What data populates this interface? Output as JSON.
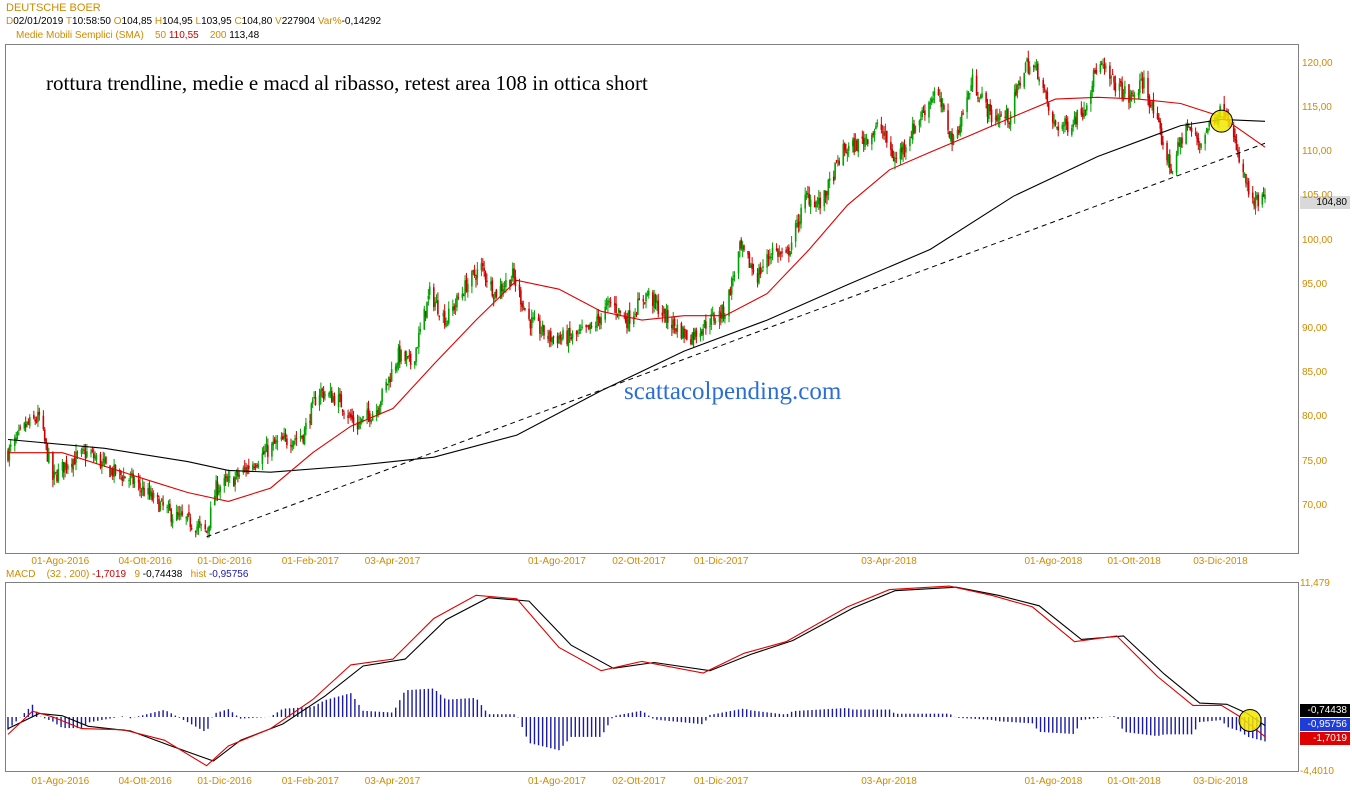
{
  "header": {
    "instrument": "DEUTSCHE BOER",
    "d_label": "D",
    "date": "02/01/2019",
    "t_label": "T",
    "time": "10:58:50",
    "o_label": "O",
    "open": "104,85",
    "h_label": "H",
    "high": "104,95",
    "l_label": "L",
    "low": "103,95",
    "c_label": "C",
    "close": "104,80",
    "v_label": "V",
    "volume": "227904",
    "var_label": "Var%",
    "var": "-0,14292"
  },
  "sma_legend": {
    "label": "Medie Mobili Semplici (SMA)",
    "p1": "50",
    "v1": "110,55",
    "p2": "200",
    "v2": "113,48"
  },
  "macd_legend": {
    "label": "MACD",
    "params": "(32 , 200)",
    "macd_value": "-1,7019",
    "signal_period": "9",
    "signal_value": "-0,74438",
    "hist_label": "hist",
    "hist_value": "-0,95756"
  },
  "annotation": "rottura trendline, medie e macd al ribasso, retest area 108 in ottica short",
  "watermark": "scattacolpending.com",
  "last_price_tag": "104,80",
  "macd_tags": {
    "signal": "-0,74438",
    "hist": "-0,95756",
    "macd": "-1,7019"
  },
  "macd_axis": {
    "top": "11,479",
    "bottom": "-4,4010"
  },
  "colors": {
    "up": "#00a000",
    "down": "#cc0000",
    "sma50": "#e00000",
    "sma200": "#000000",
    "hist": "#1a1aa8",
    "highlight": "#f2e600",
    "axis_text": "#d08a00"
  },
  "chart_data": [
    {
      "type": "candlestick",
      "title": "DEUTSCHE BOER",
      "ylim": [
        65,
        122
      ],
      "y_ticks": [
        "70,00",
        "75,00",
        "80,00",
        "85,00",
        "90,00",
        "95,00",
        "100,00",
        "105,00",
        "110,00",
        "115,00",
        "120,00"
      ],
      "x_ticks": [
        "01-Ago-2016",
        "04-Ott-2016",
        "01-Dic-2016",
        "01-Feb-2017",
        "03-Apr-2017",
        "01-Ago-2017",
        "02-Ott-2017",
        "01-Dic-2017",
        "03-Apr-2018",
        "01-Ago-2018",
        "01-Ott-2018",
        "03-Dic-2018"
      ],
      "x_start": "2016-06-22",
      "x_end": "2019-01-02",
      "price_path": [
        [
          "2016-06-22",
          76
        ],
        [
          "2016-07-05",
          79
        ],
        [
          "2016-07-15",
          80
        ],
        [
          "2016-07-25",
          73
        ],
        [
          "2016-08-05",
          75
        ],
        [
          "2016-08-20",
          76
        ],
        [
          "2016-09-05",
          74
        ],
        [
          "2016-09-20",
          73
        ],
        [
          "2016-10-05",
          71
        ],
        [
          "2016-10-20",
          69
        ],
        [
          "2016-11-05",
          68
        ],
        [
          "2016-11-15",
          67
        ],
        [
          "2016-11-22",
          72
        ],
        [
          "2016-12-05",
          73
        ],
        [
          "2016-12-20",
          75
        ],
        [
          "2017-01-05",
          77
        ],
        [
          "2017-01-25",
          78
        ],
        [
          "2017-02-05",
          83
        ],
        [
          "2017-02-20",
          82
        ],
        [
          "2017-03-05",
          79
        ],
        [
          "2017-03-20",
          81
        ],
        [
          "2017-04-05",
          87
        ],
        [
          "2017-04-15",
          86
        ],
        [
          "2017-04-28",
          94
        ],
        [
          "2017-05-10",
          91
        ],
        [
          "2017-05-25",
          95
        ],
        [
          "2017-06-05",
          97
        ],
        [
          "2017-06-15",
          94
        ],
        [
          "2017-06-28",
          96
        ],
        [
          "2017-07-10",
          91
        ],
        [
          "2017-07-25",
          89
        ],
        [
          "2017-08-10",
          89
        ],
        [
          "2017-08-25",
          90
        ],
        [
          "2017-09-08",
          93
        ],
        [
          "2017-09-20",
          91
        ],
        [
          "2017-10-05",
          94
        ],
        [
          "2017-10-20",
          91
        ],
        [
          "2017-11-05",
          89
        ],
        [
          "2017-11-20",
          91
        ],
        [
          "2017-12-01",
          92
        ],
        [
          "2017-12-12",
          99
        ],
        [
          "2017-12-25",
          96
        ],
        [
          "2018-01-05",
          99
        ],
        [
          "2018-01-15",
          98
        ],
        [
          "2018-01-30",
          105
        ],
        [
          "2018-02-10",
          104
        ],
        [
          "2018-02-25",
          110
        ],
        [
          "2018-03-10",
          111
        ],
        [
          "2018-03-25",
          113
        ],
        [
          "2018-04-05",
          109
        ],
        [
          "2018-04-20",
          113
        ],
        [
          "2018-05-05",
          117
        ],
        [
          "2018-05-18",
          111
        ],
        [
          "2018-06-01",
          118
        ],
        [
          "2018-06-15",
          114
        ],
        [
          "2018-06-28",
          114
        ],
        [
          "2018-07-10",
          120
        ],
        [
          "2018-07-20",
          119
        ],
        [
          "2018-07-30",
          113
        ],
        [
          "2018-08-10",
          113
        ],
        [
          "2018-08-22",
          115
        ],
        [
          "2018-09-01",
          120
        ],
        [
          "2018-09-12",
          118
        ],
        [
          "2018-09-25",
          116
        ],
        [
          "2018-10-05",
          118
        ],
        [
          "2018-10-15",
          113
        ],
        [
          "2018-10-25",
          108
        ],
        [
          "2018-11-05",
          113
        ],
        [
          "2018-11-15",
          111
        ],
        [
          "2018-11-25",
          114
        ],
        [
          "2018-12-05",
          115
        ],
        [
          "2018-12-12",
          110
        ],
        [
          "2018-12-18",
          107
        ],
        [
          "2018-12-24",
          104
        ],
        [
          "2019-01-02",
          104.8
        ]
      ],
      "sma50_path": [
        [
          "2016-06-22",
          76
        ],
        [
          "2016-08-01",
          76
        ],
        [
          "2016-10-01",
          73
        ],
        [
          "2016-11-01",
          71.5
        ],
        [
          "2016-12-01",
          70.5
        ],
        [
          "2017-01-01",
          72
        ],
        [
          "2017-02-01",
          76
        ],
        [
          "2017-03-01",
          79
        ],
        [
          "2017-04-01",
          81
        ],
        [
          "2017-05-01",
          86
        ],
        [
          "2017-06-01",
          91
        ],
        [
          "2017-07-01",
          95.5
        ],
        [
          "2017-08-01",
          94.5
        ],
        [
          "2017-09-01",
          92
        ],
        [
          "2017-10-01",
          91
        ],
        [
          "2017-11-01",
          91.5
        ],
        [
          "2017-12-01",
          91.5
        ],
        [
          "2018-01-01",
          94
        ],
        [
          "2018-02-01",
          99
        ],
        [
          "2018-03-01",
          104
        ],
        [
          "2018-04-01",
          108
        ],
        [
          "2018-05-01",
          110
        ],
        [
          "2018-06-01",
          112
        ],
        [
          "2018-07-01",
          114
        ],
        [
          "2018-08-01",
          116
        ],
        [
          "2018-09-01",
          116.2
        ],
        [
          "2018-10-01",
          116
        ],
        [
          "2018-11-01",
          115.5
        ],
        [
          "2018-12-01",
          114
        ],
        [
          "2019-01-02",
          110.55
        ]
      ],
      "sma200_path": [
        [
          "2016-06-22",
          77.5
        ],
        [
          "2016-09-01",
          76.5
        ],
        [
          "2016-11-01",
          75
        ],
        [
          "2016-12-01",
          74
        ],
        [
          "2017-01-01",
          73.8
        ],
        [
          "2017-03-01",
          74.5
        ],
        [
          "2017-05-01",
          75.5
        ],
        [
          "2017-07-01",
          78
        ],
        [
          "2017-09-01",
          83
        ],
        [
          "2017-11-01",
          87.5
        ],
        [
          "2018-01-01",
          91
        ],
        [
          "2018-03-01",
          95
        ],
        [
          "2018-05-01",
          99
        ],
        [
          "2018-07-01",
          105
        ],
        [
          "2018-09-01",
          109.5
        ],
        [
          "2018-11-01",
          113
        ],
        [
          "2018-12-01",
          113.7
        ],
        [
          "2019-01-02",
          113.48
        ]
      ],
      "trendline": [
        [
          "2016-11-15",
          66.5
        ],
        [
          "2019-01-02",
          111
        ]
      ],
      "highlight": {
        "date": "2018-12-01",
        "price": 113.5
      }
    },
    {
      "type": "line",
      "title": "MACD",
      "ylim": [
        -4.401,
        11.479
      ],
      "series": [
        {
          "name": "MACD",
          "points": [
            [
              "2016-06-22",
              -1.5
            ],
            [
              "2016-07-10",
              0.5
            ],
            [
              "2016-07-25",
              0.0
            ],
            [
              "2016-08-15",
              -1.0
            ],
            [
              "2016-09-15",
              -1.1
            ],
            [
              "2016-10-15",
              -2.0
            ],
            [
              "2016-11-15",
              -4.2
            ],
            [
              "2016-12-01",
              -2.5
            ],
            [
              "2017-01-01",
              -1.0
            ],
            [
              "2017-02-01",
              1.5
            ],
            [
              "2017-03-01",
              4.5
            ],
            [
              "2017-04-01",
              5.0
            ],
            [
              "2017-05-01",
              8.5
            ],
            [
              "2017-06-01",
              10.5
            ],
            [
              "2017-07-01",
              10.2
            ],
            [
              "2017-08-01",
              6.0
            ],
            [
              "2017-09-01",
              4.0
            ],
            [
              "2017-10-01",
              4.8
            ],
            [
              "2017-11-15",
              3.8
            ],
            [
              "2017-12-15",
              5.5
            ],
            [
              "2018-01-15",
              6.5
            ],
            [
              "2018-03-01",
              9.5
            ],
            [
              "2018-04-01",
              11.0
            ],
            [
              "2018-05-15",
              11.3
            ],
            [
              "2018-06-15",
              10.5
            ],
            [
              "2018-07-15",
              9.5
            ],
            [
              "2018-08-15",
              6.5
            ],
            [
              "2018-09-15",
              7.0
            ],
            [
              "2018-10-15",
              3.5
            ],
            [
              "2018-11-10",
              1.0
            ],
            [
              "2018-12-01",
              1.0
            ],
            [
              "2018-12-15",
              0.0
            ],
            [
              "2019-01-02",
              -1.7019
            ]
          ]
        },
        {
          "name": "Signal",
          "points": [
            [
              "2016-06-22",
              -1.0
            ],
            [
              "2016-07-15",
              0.3
            ],
            [
              "2016-08-01",
              0.1
            ],
            [
              "2016-08-20",
              -0.8
            ],
            [
              "2016-09-20",
              -1.2
            ],
            [
              "2016-10-20",
              -2.5
            ],
            [
              "2016-11-20",
              -3.8
            ],
            [
              "2016-12-10",
              -2.0
            ],
            [
              "2017-01-10",
              -0.6
            ],
            [
              "2017-02-10",
              1.8
            ],
            [
              "2017-03-10",
              4.4
            ],
            [
              "2017-04-10",
              5.0
            ],
            [
              "2017-05-10",
              8.4
            ],
            [
              "2017-06-10",
              10.3
            ],
            [
              "2017-07-10",
              10.0
            ],
            [
              "2017-08-10",
              6.2
            ],
            [
              "2017-09-10",
              4.2
            ],
            [
              "2017-10-10",
              4.7
            ],
            [
              "2017-11-20",
              4.0
            ],
            [
              "2017-12-20",
              5.4
            ],
            [
              "2018-01-20",
              6.6
            ],
            [
              "2018-03-05",
              9.4
            ],
            [
              "2018-04-05",
              10.9
            ],
            [
              "2018-05-20",
              11.2
            ],
            [
              "2018-06-20",
              10.5
            ],
            [
              "2018-07-20",
              9.6
            ],
            [
              "2018-08-20",
              6.7
            ],
            [
              "2018-09-20",
              7.0
            ],
            [
              "2018-10-20",
              3.7
            ],
            [
              "2018-11-15",
              1.2
            ],
            [
              "2018-12-05",
              1.1
            ],
            [
              "2018-12-20",
              0.3
            ],
            [
              "2019-01-02",
              -0.74438
            ]
          ]
        }
      ],
      "hist_last": -0.95756,
      "highlight": {
        "date": "2018-12-22",
        "value": -0.3
      }
    }
  ]
}
